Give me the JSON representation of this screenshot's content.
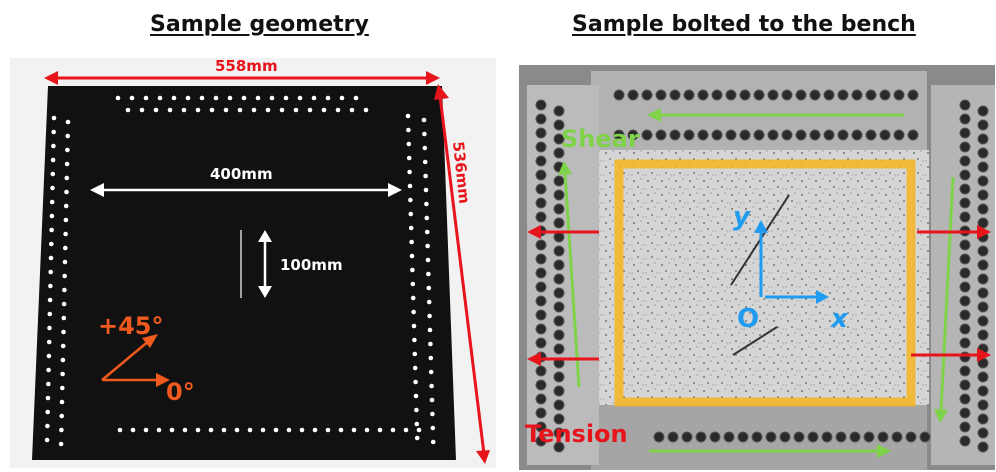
{
  "left_panel": {
    "title": "Sample geometry",
    "dim_width": "558mm",
    "dim_height": "536mm",
    "dim_inner": "400mm",
    "dim_short": "100mm",
    "angle_45": "+45°",
    "angle_0": "0°"
  },
  "right_panel": {
    "title": "Sample bolted to the bench",
    "shear_label": "Shear",
    "tension_label": "Tension",
    "axis_y": "y",
    "axis_x": "x",
    "origin": "O"
  },
  "colors": {
    "dimension_red": "#e8141c",
    "angle_orange": "#f05a1e",
    "shear_green": "#7ed348",
    "tension_red": "#e8141c",
    "axis_blue": "#1f9bef",
    "frame_yellow": "#f6b51f"
  }
}
